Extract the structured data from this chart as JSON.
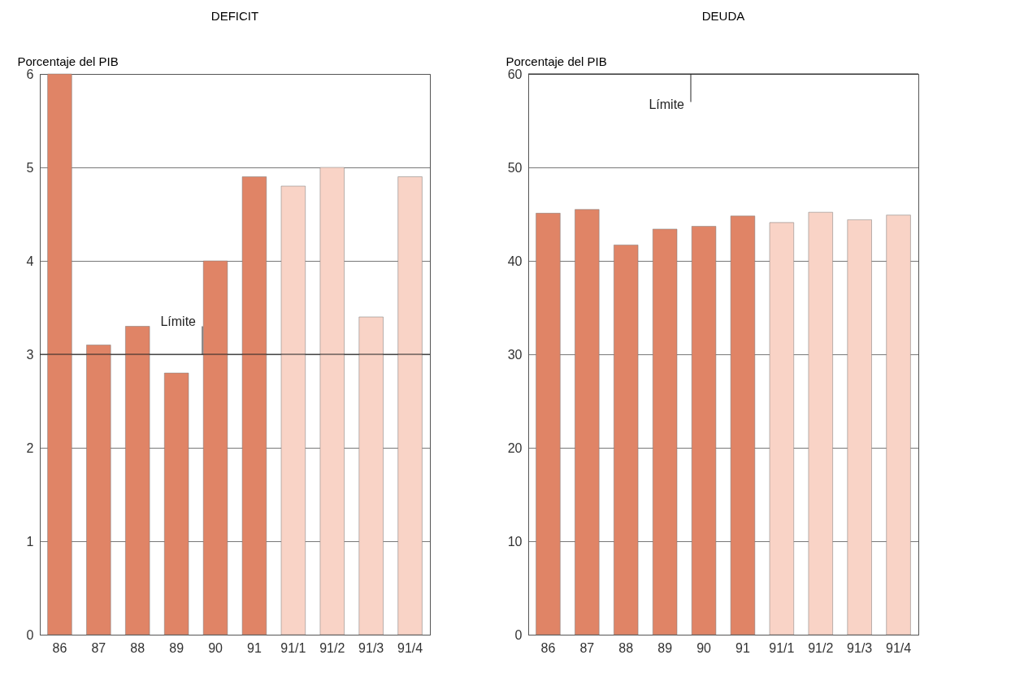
{
  "chart_data": [
    {
      "type": "bar",
      "title": "DEFICIT",
      "ylabel": "Porcentaje del PIB",
      "categories": [
        "86",
        "87",
        "88",
        "89",
        "90",
        "91",
        "91/1",
        "91/2",
        "91/3",
        "91/4"
      ],
      "values": [
        6.0,
        3.1,
        3.3,
        2.8,
        4.0,
        4.9,
        4.8,
        5.0,
        3.4,
        4.9
      ],
      "colors": [
        "#e08466",
        "#e08466",
        "#e08466",
        "#e08466",
        "#e08466",
        "#e08466",
        "#f9d3c6",
        "#f9d3c6",
        "#f9d3c6",
        "#f9d3c6"
      ],
      "ylim": [
        0,
        6
      ],
      "yticks": [
        0,
        1,
        2,
        3,
        4,
        5,
        6
      ],
      "grid": "y",
      "ref_lines": [
        {
          "axis": "y",
          "value": 3,
          "label": "Límite"
        }
      ]
    },
    {
      "type": "bar",
      "title": "DEUDA",
      "ylabel": "Porcentaje del PIB",
      "categories": [
        "86",
        "87",
        "88",
        "89",
        "90",
        "91",
        "91/1",
        "91/2",
        "91/3",
        "91/4"
      ],
      "values": [
        45.1,
        45.5,
        41.7,
        43.4,
        43.7,
        44.8,
        44.1,
        45.2,
        44.4,
        44.9
      ],
      "colors": [
        "#e08466",
        "#e08466",
        "#e08466",
        "#e08466",
        "#e08466",
        "#e08466",
        "#f9d3c6",
        "#f9d3c6",
        "#f9d3c6",
        "#f9d3c6"
      ],
      "ylim": [
        0,
        60
      ],
      "yticks": [
        0,
        10,
        20,
        30,
        40,
        50,
        60
      ],
      "grid": "y",
      "ref_lines": [
        {
          "axis": "y",
          "value": 60,
          "label": "Límite"
        }
      ]
    }
  ]
}
